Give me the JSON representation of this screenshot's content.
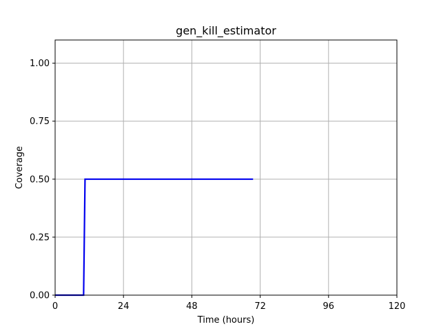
{
  "chart_data": {
    "type": "line",
    "title": "gen_kill_estimator",
    "xlabel": "Time (hours)",
    "ylabel": "Coverage",
    "xlim": [
      0,
      120
    ],
    "ylim": [
      0,
      1.1
    ],
    "x_ticks": [
      {
        "value": 0,
        "label": "0"
      },
      {
        "value": 24,
        "label": "24"
      },
      {
        "value": 48,
        "label": "48"
      },
      {
        "value": 72,
        "label": "72"
      },
      {
        "value": 96,
        "label": "96"
      },
      {
        "value": 120,
        "label": "120"
      }
    ],
    "y_ticks": [
      {
        "value": 0,
        "label": "0.00"
      },
      {
        "value": 0.25,
        "label": "0.25"
      },
      {
        "value": 0.5,
        "label": "0.50"
      },
      {
        "value": 0.75,
        "label": "0.75"
      },
      {
        "value": 1.0,
        "label": "1.00"
      }
    ],
    "grid": true,
    "series": [
      {
        "color": "#0000ee",
        "x": [
          0,
          10,
          10.5,
          69.5
        ],
        "y": [
          0,
          0,
          0.5,
          0.5
        ]
      }
    ]
  }
}
